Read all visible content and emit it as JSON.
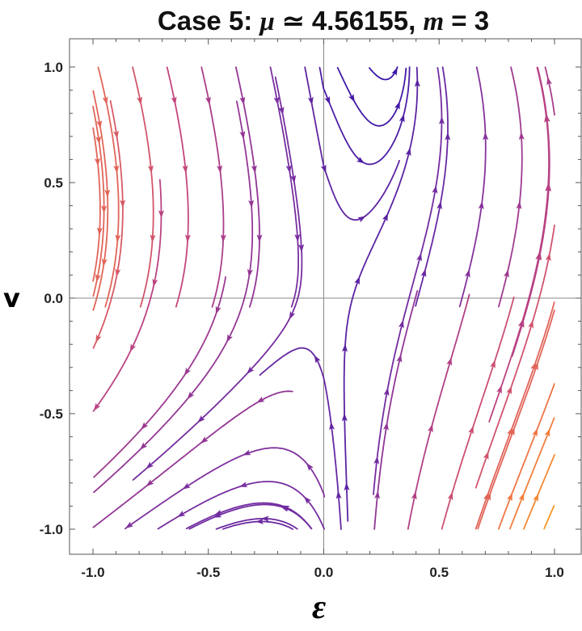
{
  "title": {
    "prefix": "Case 5: ",
    "mu_symbol": "μ",
    "approx": " ≃ 4.56155, ",
    "m_symbol": "m",
    "suffix": " = 3"
  },
  "chart_data": {
    "type": "streamplot",
    "xlabel": "ε",
    "ylabel": "v",
    "xlim": [
      -1.0,
      1.0
    ],
    "ylim": [
      -1.0,
      1.0
    ],
    "xticks": [
      "-1.0",
      "-0.5",
      "0.0",
      "0.5",
      "1.0"
    ],
    "yticks": [
      "-1.0",
      "-0.5",
      "0.0",
      "0.5",
      "1.0"
    ],
    "grid": false,
    "color_scale": [
      "#2f12a6",
      "#7a2fa0",
      "#c2457e",
      "#ef7347",
      "#f9a020"
    ]
  }
}
